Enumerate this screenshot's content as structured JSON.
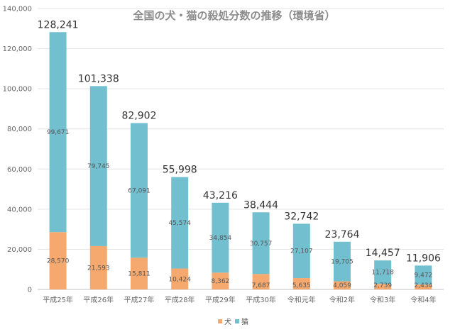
{
  "chart_data": {
    "type": "bar",
    "stacked": true,
    "title": "全国の犬・猫の殺処分数の推移（環境省）",
    "categories": [
      "平成25年",
      "平成26年",
      "平成27年",
      "平成28年",
      "平成29年",
      "平成30年",
      "令和元年",
      "令和2年",
      "令和3年",
      "令和4年"
    ],
    "series": [
      {
        "name": "犬",
        "color": "#f6a96e",
        "values": [
          28570,
          21593,
          15811,
          10424,
          8362,
          7687,
          5635,
          4059,
          2739,
          2434
        ],
        "labels": [
          "28,570",
          "21,593",
          "15,811",
          "10,424",
          "8,362",
          "7,687",
          "5,635",
          "4,059",
          "2,739",
          "2,434"
        ]
      },
      {
        "name": "猫",
        "color": "#72bfd0",
        "values": [
          99671,
          79745,
          67091,
          45574,
          34854,
          30757,
          27107,
          19705,
          11718,
          9472
        ],
        "labels": [
          "99,671",
          "79,745",
          "67,091",
          "45,574",
          "34,854",
          "30,757",
          "27,107",
          "19,705",
          "11,718",
          "9,472"
        ]
      }
    ],
    "totals": [
      "128,241",
      "101,338",
      "82,902",
      "55,998",
      "43,216",
      "38,444",
      "32,742",
      "23,764",
      "14,457",
      "11,906"
    ],
    "ylim": [
      0,
      140000
    ],
    "yticks": [
      0,
      20000,
      40000,
      60000,
      80000,
      100000,
      120000,
      140000
    ],
    "ytick_labels": [
      "0",
      "20,000",
      "40,000",
      "60,000",
      "80,000",
      "100,000",
      "120,000",
      "140,000"
    ],
    "grid": true,
    "legend": "bottom-center"
  }
}
